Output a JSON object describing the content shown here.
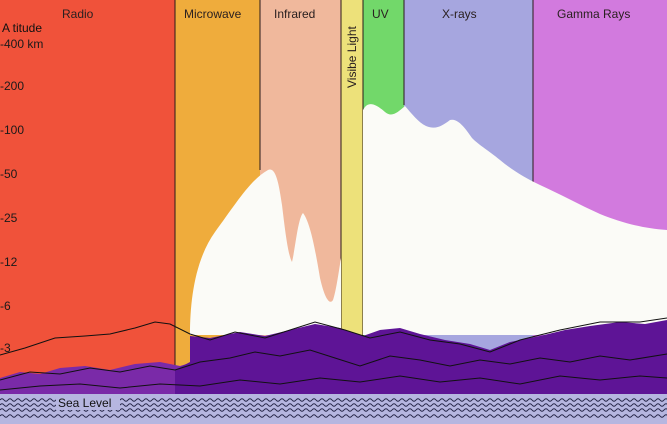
{
  "diagram": {
    "altitude_title": "A titude",
    "altitude_ticks": [
      "400 km",
      "200",
      "100",
      "50",
      "25",
      "12",
      "6",
      "3"
    ],
    "sea_level_label": "Sea Level",
    "bands": [
      {
        "id": "radio",
        "label": "Radio",
        "color": "#f0523a"
      },
      {
        "id": "microwave",
        "label": "Microwave",
        "color": "#efac3c"
      },
      {
        "id": "infrared",
        "label": "Infrared",
        "color": "#f0b89c"
      },
      {
        "id": "visible",
        "label": "Visibe Light",
        "color": "#ede17a"
      },
      {
        "id": "uv",
        "label": "UV",
        "color": "#72d86a"
      },
      {
        "id": "xrays",
        "label": "X-rays",
        "color": "#a6a6df"
      },
      {
        "id": "gamma",
        "label": "Gamma Rays",
        "color": "#d27ade"
      }
    ],
    "colors": {
      "transparent_region": "#fbfbf7",
      "mountains": "#5e1496",
      "mountains_back": "#7a2aa8",
      "sea": "#b6b6e0",
      "wave_lines": "#222244"
    }
  }
}
